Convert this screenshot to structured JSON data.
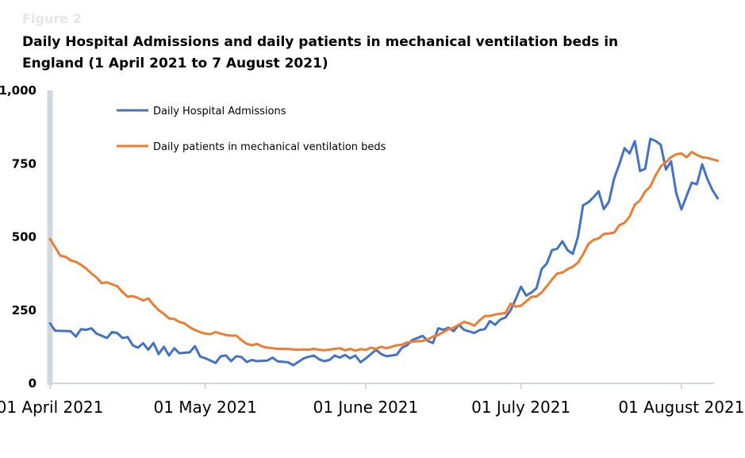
{
  "figure_label": "Figure 2",
  "title": "Daily Hospital Admissions and daily patients in mechanical ventilation beds in England (1 April 2021 to 7 August 2021)",
  "colors": {
    "admissions": "#4472C4",
    "ventilation": "#ED7D31",
    "axis": "#d0d8de"
  },
  "chart_data": {
    "type": "line",
    "title": "Daily Hospital Admissions and daily patients in mechanical ventilation beds in England (1 April 2021 to 7 August 2021)",
    "xlabel": "",
    "ylabel": "",
    "ylim": [
      0,
      1000
    ],
    "yticks": [
      0,
      250,
      500,
      750,
      1000
    ],
    "ytick_labels": [
      "0",
      "250",
      "500",
      "750",
      "1,000"
    ],
    "xlim": [
      "2021-04-01",
      "2021-08-07"
    ],
    "xticks": [
      "2021-04-01",
      "2021-05-01",
      "2021-06-01",
      "2021-07-01",
      "2021-08-01"
    ],
    "xtick_labels": [
      "01 April 2021",
      "01 May 2021",
      "01 June 2021",
      "01 July 2021",
      "01 August 2021"
    ],
    "legend_position": "top-left",
    "grid": false,
    "series": [
      {
        "name": "Daily Hospital Admissions",
        "color": "#4472C4",
        "points": [
          [
            "2021-04-01",
            205
          ],
          [
            "2021-04-02",
            180
          ],
          [
            "2021-04-05",
            178
          ],
          [
            "2021-04-06",
            160
          ],
          [
            "2021-04-07",
            185
          ],
          [
            "2021-04-08",
            183
          ],
          [
            "2021-04-09",
            188
          ],
          [
            "2021-04-10",
            170
          ],
          [
            "2021-04-12",
            155
          ],
          [
            "2021-04-13",
            175
          ],
          [
            "2021-04-14",
            172
          ],
          [
            "2021-04-15",
            155
          ],
          [
            "2021-04-16",
            158
          ],
          [
            "2021-04-17",
            130
          ],
          [
            "2021-04-18",
            122
          ],
          [
            "2021-04-19",
            137
          ],
          [
            "2021-04-20",
            115
          ],
          [
            "2021-04-21",
            138
          ],
          [
            "2021-04-22",
            100
          ],
          [
            "2021-04-23",
            125
          ],
          [
            "2021-04-24",
            95
          ],
          [
            "2021-04-25",
            120
          ],
          [
            "2021-04-26",
            103
          ],
          [
            "2021-04-28",
            106
          ],
          [
            "2021-04-29",
            127
          ],
          [
            "2021-04-30",
            92
          ],
          [
            "2021-05-01",
            86
          ],
          [
            "2021-05-03",
            70
          ],
          [
            "2021-05-04",
            93
          ],
          [
            "2021-05-05",
            95
          ],
          [
            "2021-05-06",
            76
          ],
          [
            "2021-05-07",
            93
          ],
          [
            "2021-05-08",
            90
          ],
          [
            "2021-05-09",
            73
          ],
          [
            "2021-05-10",
            80
          ],
          [
            "2021-05-11",
            76
          ],
          [
            "2021-05-13",
            78
          ],
          [
            "2021-05-14",
            88
          ],
          [
            "2021-05-15",
            75
          ],
          [
            "2021-05-17",
            72
          ],
          [
            "2021-05-18",
            62
          ],
          [
            "2021-05-20",
            85
          ],
          [
            "2021-05-21",
            91
          ],
          [
            "2021-05-22",
            95
          ],
          [
            "2021-05-23",
            82
          ],
          [
            "2021-05-24",
            76
          ],
          [
            "2021-05-25",
            80
          ],
          [
            "2021-05-26",
            95
          ],
          [
            "2021-05-27",
            88
          ],
          [
            "2021-05-28",
            97
          ],
          [
            "2021-05-29",
            86
          ],
          [
            "2021-05-30",
            95
          ],
          [
            "2021-05-31",
            72
          ],
          [
            "2021-06-01",
            85
          ],
          [
            "2021-06-02",
            100
          ],
          [
            "2021-06-03",
            115
          ],
          [
            "2021-06-04",
            100
          ],
          [
            "2021-06-05",
            93
          ],
          [
            "2021-06-06",
            95
          ],
          [
            "2021-06-07",
            98
          ],
          [
            "2021-06-08",
            122
          ],
          [
            "2021-06-09",
            130
          ],
          [
            "2021-06-10",
            148
          ],
          [
            "2021-06-11",
            155
          ],
          [
            "2021-06-12",
            162
          ],
          [
            "2021-06-13",
            145
          ],
          [
            "2021-06-14",
            138
          ],
          [
            "2021-06-15",
            188
          ],
          [
            "2021-06-16",
            183
          ],
          [
            "2021-06-17",
            190
          ],
          [
            "2021-06-18",
            178
          ],
          [
            "2021-06-19",
            200
          ],
          [
            "2021-06-20",
            183
          ],
          [
            "2021-06-22",
            172
          ],
          [
            "2021-06-23",
            182
          ],
          [
            "2021-06-24",
            185
          ],
          [
            "2021-06-25",
            213
          ],
          [
            "2021-06-26",
            200
          ],
          [
            "2021-06-27",
            218
          ],
          [
            "2021-06-28",
            225
          ],
          [
            "2021-06-29",
            250
          ],
          [
            "2021-06-30",
            288
          ],
          [
            "2021-07-01",
            330
          ],
          [
            "2021-07-02",
            300
          ],
          [
            "2021-07-03",
            310
          ],
          [
            "2021-07-04",
            325
          ],
          [
            "2021-07-05",
            390
          ],
          [
            "2021-07-06",
            410
          ],
          [
            "2021-07-07",
            455
          ],
          [
            "2021-07-08",
            460
          ],
          [
            "2021-07-09",
            485
          ],
          [
            "2021-07-10",
            455
          ],
          [
            "2021-07-11",
            442
          ],
          [
            "2021-07-12",
            500
          ],
          [
            "2021-07-13",
            608
          ],
          [
            "2021-07-14",
            618
          ],
          [
            "2021-07-15",
            635
          ],
          [
            "2021-07-16",
            656
          ],
          [
            "2021-07-17",
            595
          ],
          [
            "2021-07-18",
            620
          ],
          [
            "2021-07-19",
            700
          ],
          [
            "2021-07-20",
            748
          ],
          [
            "2021-07-21",
            803
          ],
          [
            "2021-07-22",
            785
          ],
          [
            "2021-07-23",
            827
          ],
          [
            "2021-07-24",
            725
          ],
          [
            "2021-07-25",
            733
          ],
          [
            "2021-07-26",
            835
          ],
          [
            "2021-07-27",
            828
          ],
          [
            "2021-07-28",
            815
          ],
          [
            "2021-07-29",
            730
          ],
          [
            "2021-07-30",
            758
          ],
          [
            "2021-07-31",
            650
          ],
          [
            "2021-08-01",
            594
          ],
          [
            "2021-08-02",
            640
          ],
          [
            "2021-08-03",
            685
          ],
          [
            "2021-08-04",
            680
          ],
          [
            "2021-08-05",
            748
          ],
          [
            "2021-08-06",
            698
          ],
          [
            "2021-08-07",
            660
          ],
          [
            "2021-08-08",
            632
          ]
        ]
      },
      {
        "name": "Daily patients in mechanical ventilation beds",
        "color": "#ED7D31",
        "points": [
          [
            "2021-04-01",
            493
          ],
          [
            "2021-04-02",
            465
          ],
          [
            "2021-04-03",
            436
          ],
          [
            "2021-04-04",
            432
          ],
          [
            "2021-04-05",
            420
          ],
          [
            "2021-04-06",
            415
          ],
          [
            "2021-04-07",
            405
          ],
          [
            "2021-04-08",
            392
          ],
          [
            "2021-04-09",
            375
          ],
          [
            "2021-04-10",
            362
          ],
          [
            "2021-04-11",
            342
          ],
          [
            "2021-04-12",
            345
          ],
          [
            "2021-04-13",
            338
          ],
          [
            "2021-04-14",
            332
          ],
          [
            "2021-04-15",
            312
          ],
          [
            "2021-04-16",
            296
          ],
          [
            "2021-04-17",
            298
          ],
          [
            "2021-04-18",
            292
          ],
          [
            "2021-04-19",
            283
          ],
          [
            "2021-04-20",
            290
          ],
          [
            "2021-04-21",
            268
          ],
          [
            "2021-04-22",
            250
          ],
          [
            "2021-04-23",
            238
          ],
          [
            "2021-04-24",
            222
          ],
          [
            "2021-04-25",
            220
          ],
          [
            "2021-04-26",
            210
          ],
          [
            "2021-04-27",
            205
          ],
          [
            "2021-04-28",
            192
          ],
          [
            "2021-04-29",
            182
          ],
          [
            "2021-04-30",
            175
          ],
          [
            "2021-05-01",
            170
          ],
          [
            "2021-05-02",
            168
          ],
          [
            "2021-05-03",
            175
          ],
          [
            "2021-05-04",
            170
          ],
          [
            "2021-05-05",
            165
          ],
          [
            "2021-05-06",
            163
          ],
          [
            "2021-05-07",
            163
          ],
          [
            "2021-05-08",
            148
          ],
          [
            "2021-05-09",
            135
          ],
          [
            "2021-05-10",
            130
          ],
          [
            "2021-05-11",
            135
          ],
          [
            "2021-05-12",
            126
          ],
          [
            "2021-05-13",
            122
          ],
          [
            "2021-05-14",
            120
          ],
          [
            "2021-05-15",
            118
          ],
          [
            "2021-05-16",
            118
          ],
          [
            "2021-05-17",
            117
          ],
          [
            "2021-05-18",
            116
          ],
          [
            "2021-05-19",
            115
          ],
          [
            "2021-05-20",
            116
          ],
          [
            "2021-05-21",
            115
          ],
          [
            "2021-05-22",
            118
          ],
          [
            "2021-05-23",
            115
          ],
          [
            "2021-05-24",
            113
          ],
          [
            "2021-05-25",
            115
          ],
          [
            "2021-05-26",
            118
          ],
          [
            "2021-05-27",
            120
          ],
          [
            "2021-05-28",
            113
          ],
          [
            "2021-05-29",
            118
          ],
          [
            "2021-05-30",
            112
          ],
          [
            "2021-05-31",
            117
          ],
          [
            "2021-06-01",
            114
          ],
          [
            "2021-06-02",
            122
          ],
          [
            "2021-06-03",
            118
          ],
          [
            "2021-06-04",
            125
          ],
          [
            "2021-06-05",
            120
          ],
          [
            "2021-06-06",
            125
          ],
          [
            "2021-06-07",
            130
          ],
          [
            "2021-06-08",
            132
          ],
          [
            "2021-06-09",
            140
          ],
          [
            "2021-06-10",
            142
          ],
          [
            "2021-06-11",
            144
          ],
          [
            "2021-06-12",
            145
          ],
          [
            "2021-06-13",
            150
          ],
          [
            "2021-06-14",
            160
          ],
          [
            "2021-06-15",
            165
          ],
          [
            "2021-06-16",
            175
          ],
          [
            "2021-06-17",
            185
          ],
          [
            "2021-06-18",
            190
          ],
          [
            "2021-06-19",
            200
          ],
          [
            "2021-06-20",
            210
          ],
          [
            "2021-06-21",
            205
          ],
          [
            "2021-06-22",
            197
          ],
          [
            "2021-06-23",
            215
          ],
          [
            "2021-06-24",
            230
          ],
          [
            "2021-06-25",
            230
          ],
          [
            "2021-06-26",
            235
          ],
          [
            "2021-06-27",
            238
          ],
          [
            "2021-06-28",
            240
          ],
          [
            "2021-06-29",
            272
          ],
          [
            "2021-06-30",
            262
          ],
          [
            "2021-07-01",
            265
          ],
          [
            "2021-07-02",
            280
          ],
          [
            "2021-07-03",
            295
          ],
          [
            "2021-07-04",
            297
          ],
          [
            "2021-07-05",
            310
          ],
          [
            "2021-07-06",
            332
          ],
          [
            "2021-07-07",
            355
          ],
          [
            "2021-07-08",
            375
          ],
          [
            "2021-07-09",
            378
          ],
          [
            "2021-07-10",
            390
          ],
          [
            "2021-07-11",
            398
          ],
          [
            "2021-07-12",
            412
          ],
          [
            "2021-07-13",
            440
          ],
          [
            "2021-07-14",
            475
          ],
          [
            "2021-07-15",
            490
          ],
          [
            "2021-07-16",
            495
          ],
          [
            "2021-07-17",
            510
          ],
          [
            "2021-07-18",
            512
          ],
          [
            "2021-07-19",
            515
          ],
          [
            "2021-07-20",
            540
          ],
          [
            "2021-07-21",
            548
          ],
          [
            "2021-07-22",
            570
          ],
          [
            "2021-07-23",
            610
          ],
          [
            "2021-07-24",
            625
          ],
          [
            "2021-07-25",
            655
          ],
          [
            "2021-07-26",
            672
          ],
          [
            "2021-07-27",
            710
          ],
          [
            "2021-07-28",
            740
          ],
          [
            "2021-07-29",
            755
          ],
          [
            "2021-07-30",
            772
          ],
          [
            "2021-07-31",
            782
          ],
          [
            "2021-08-01",
            785
          ],
          [
            "2021-08-02",
            772
          ],
          [
            "2021-08-03",
            790
          ],
          [
            "2021-08-04",
            780
          ],
          [
            "2021-08-05",
            772
          ],
          [
            "2021-08-06",
            770
          ],
          [
            "2021-08-07",
            765
          ],
          [
            "2021-08-08",
            760
          ]
        ]
      }
    ]
  }
}
